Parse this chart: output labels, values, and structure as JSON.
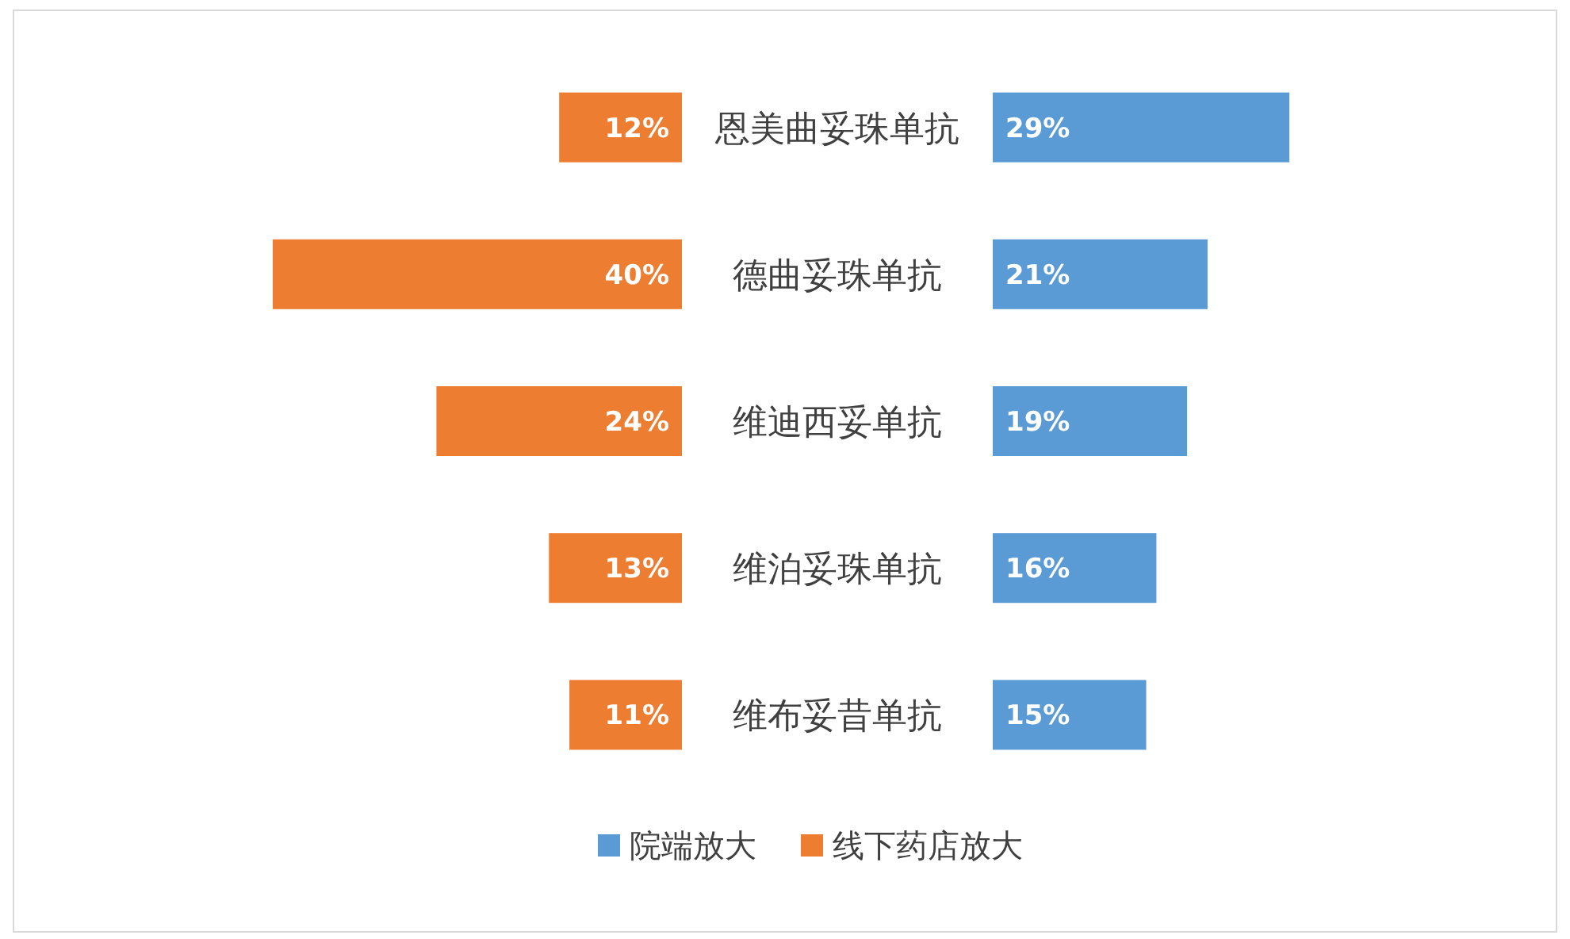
{
  "chart_data": [
    {
      "type": "bar",
      "orientation": "horizontal",
      "legend": "bottom",
      "tick_labels": "y",
      "xlim": [
        40,
        0
      ],
      "categories": [
        "恩美曲妥珠单抗",
        "德曲妥珠单抗",
        "维迪西妥单抗",
        "维泊妥珠单抗",
        "维布妥昔单抗"
      ],
      "series": [
        {
          "name": "线下药店放大",
          "color": "#ed7d31",
          "values": [
            12,
            40,
            24,
            13,
            11
          ],
          "value_labels": [
            "12%",
            "40%",
            "24%",
            "13%",
            "11%"
          ]
        }
      ]
    },
    {
      "type": "bar",
      "orientation": "horizontal",
      "legend": "bottom",
      "tick_labels": false,
      "categories": [
        null,
        null,
        null,
        null,
        null
      ],
      "series": [
        {
          "name": "院端放大",
          "color": "#5b9bd5",
          "values": [
            29,
            21,
            19,
            16,
            15
          ],
          "value_labels": [
            "29%",
            "21%",
            "19%",
            "16%",
            "15%"
          ]
        }
      ]
    }
  ]
}
